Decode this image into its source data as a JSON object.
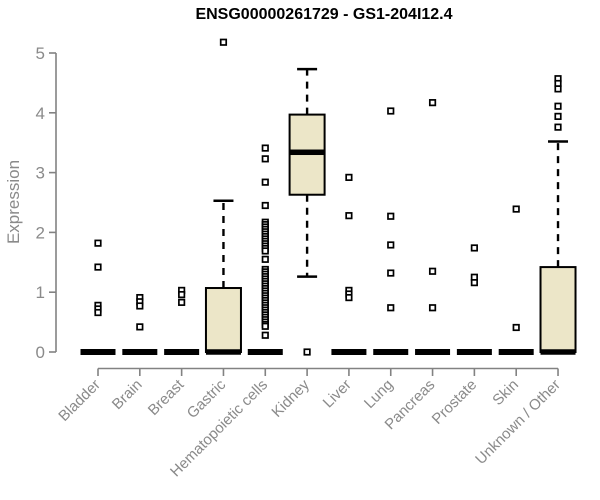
{
  "page": {
    "background": "#FFFFFF"
  },
  "chart_data": {
    "type": "boxplot",
    "title": "ENSG00000261729 - GS1-204I12.4",
    "xlabel": "",
    "ylabel": "Expression",
    "ylim": [
      0,
      5
    ],
    "yticks": [
      0,
      1,
      2,
      3,
      4,
      5
    ],
    "grid": false,
    "legend": "none",
    "categories": [
      "Bladder",
      "Brain",
      "Breast",
      "Gastric",
      "Hematopoietic cells",
      "Kidney",
      "Liver",
      "Lung",
      "Pancreas",
      "Prostate",
      "Skin",
      "Unknown / Other"
    ],
    "boxes": [
      {
        "category": "Bladder",
        "q1": 0,
        "median": 0,
        "q3": 0,
        "whisker_low": 0,
        "whisker_high": 0,
        "outliers": [
          1.82,
          1.42,
          0.78,
          0.72,
          0.66
        ]
      },
      {
        "category": "Brain",
        "q1": 0,
        "median": 0,
        "q3": 0,
        "whisker_low": 0,
        "whisker_high": 0,
        "outliers": [
          0.91,
          0.84,
          0.77,
          0.42
        ]
      },
      {
        "category": "Breast",
        "q1": 0,
        "median": 0,
        "q3": 0,
        "whisker_low": 0,
        "whisker_high": 0,
        "outliers": [
          1.03,
          0.96,
          0.83
        ]
      },
      {
        "category": "Gastric",
        "q1": 0,
        "median": 0,
        "q3": 1.07,
        "whisker_low": 0,
        "whisker_high": 2.53,
        "outliers": [
          5.18
        ]
      },
      {
        "category": "Hematopoietic cells",
        "q1": 0,
        "median": 0,
        "q3": 0,
        "whisker_low": 0,
        "whisker_high": 0,
        "outliers": [
          3.41,
          3.23,
          2.84,
          2.45,
          2.17,
          2.13,
          2.09,
          2.05,
          2.01,
          1.97,
          1.93,
          1.89,
          1.85,
          1.81,
          1.77,
          1.73,
          1.69,
          1.55,
          1.38,
          1.34,
          1.3,
          1.26,
          1.22,
          1.18,
          1.14,
          1.1,
          1.06,
          1.02,
          0.98,
          0.94,
          0.9,
          0.86,
          0.82,
          0.78,
          0.74,
          0.7,
          0.66,
          0.62,
          0.58,
          0.54,
          0.5,
          0.46,
          0.43,
          0.28
        ]
      },
      {
        "category": "Kidney",
        "q1": 2.63,
        "median": 3.34,
        "q3": 3.97,
        "whisker_low": 1.26,
        "whisker_high": 4.73,
        "outliers": [
          0.0
        ]
      },
      {
        "category": "Liver",
        "q1": 0,
        "median": 0,
        "q3": 0,
        "whisker_low": 0,
        "whisker_high": 0,
        "outliers": [
          2.92,
          2.28,
          1.03,
          0.97,
          0.91
        ]
      },
      {
        "category": "Lung",
        "q1": 0,
        "median": 0,
        "q3": 0,
        "whisker_low": 0,
        "whisker_high": 0,
        "outliers": [
          4.03,
          2.27,
          1.79,
          1.32,
          0.74
        ]
      },
      {
        "category": "Pancreas",
        "q1": 0,
        "median": 0,
        "q3": 0,
        "whisker_low": 0,
        "whisker_high": 0,
        "outliers": [
          4.17,
          1.35,
          0.74
        ]
      },
      {
        "category": "Prostate",
        "q1": 0,
        "median": 0,
        "q3": 0,
        "whisker_low": 0,
        "whisker_high": 0,
        "outliers": [
          1.74,
          1.25,
          1.16
        ]
      },
      {
        "category": "Skin",
        "q1": 0,
        "median": 0,
        "q3": 0,
        "whisker_low": 0,
        "whisker_high": 0,
        "outliers": [
          2.39,
          0.41
        ]
      },
      {
        "category": "Unknown / Other",
        "q1": 0,
        "median": 0,
        "q3": 1.42,
        "whisker_low": 0,
        "whisker_high": 3.52,
        "outliers": [
          4.57,
          4.49,
          4.4,
          4.11,
          3.94,
          3.76
        ]
      }
    ],
    "style": {
      "box_fill": "#ECE6C8",
      "box_border": "#000000",
      "median_color": "#000000",
      "whisker_style": "dashed",
      "outlier_marker": "open-square",
      "axis_color": "#828282",
      "text_color": "#8A8A8A",
      "title_color": "#000000",
      "background": "#FFFFFF"
    }
  }
}
